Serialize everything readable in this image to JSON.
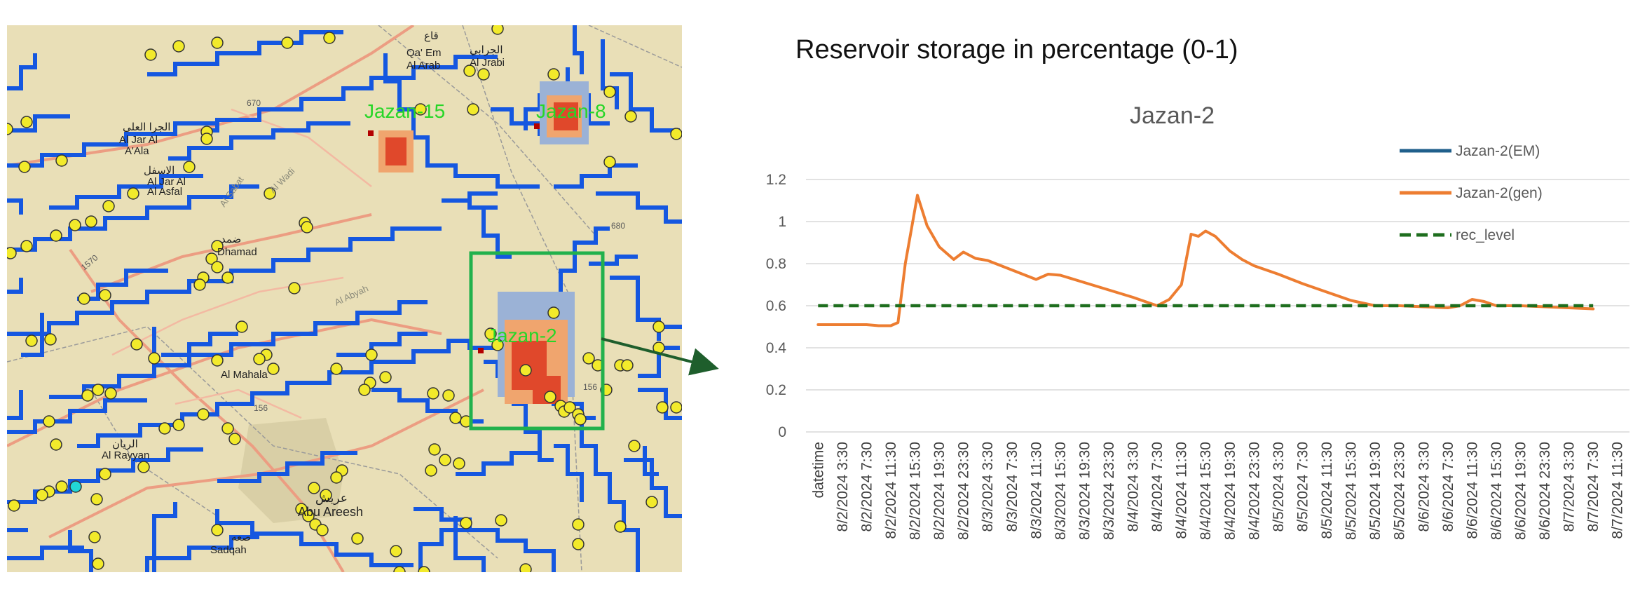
{
  "slide_title": "Reservoir storage in percentage (0-1)",
  "map": {
    "reservoir_labels": [
      "Jazan-15",
      "Jazan-8",
      "Jazan-2"
    ],
    "place_labels": [
      "الجرا العلى",
      "Al Jar Al",
      "A'Ala",
      "الاسفل",
      "Al Jar Al",
      "Al Asfal",
      "قاع",
      "Qa' Em",
      "Al Arab",
      "الجرابي",
      "Al Jrabi",
      "Dhamad",
      "ضمد",
      "Al Mahala",
      "الريان",
      "Al Rayyan",
      "عريش",
      "Abu Areesh",
      "صعه",
      "Sadqah",
      "Al Sabat",
      "Al Wadi",
      "Al Abyah"
    ],
    "road_labels": [
      "670",
      "680",
      "156",
      "156",
      "1570"
    ],
    "colors": {
      "background": "#e9dfb7",
      "river": "#1557e0",
      "gauge": "#f2ea2b",
      "highlight_box": "#22b14c",
      "arrow": "#1e5e2c"
    }
  },
  "chart_data": {
    "type": "line",
    "title": "Jazan-2",
    "xlabel": "",
    "ylabel": "",
    "ylim": [
      0,
      1.2
    ],
    "yticks": [
      "0",
      "0.2",
      "0.4",
      "0.6",
      "0.8",
      "1",
      "1.2"
    ],
    "xticks": [
      "datetime",
      "8/2/2024 3:30",
      "8/2/2024 7:30",
      "8/2/2024 11:30",
      "8/2/2024 15:30",
      "8/2/2024 19:30",
      "8/2/2024 23:30",
      "8/3/2024 3:30",
      "8/3/2024 7:30",
      "8/3/2024 11:30",
      "8/3/2024 15:30",
      "8/3/2024 19:30",
      "8/3/2024 23:30",
      "8/4/2024 3:30",
      "8/4/2024 7:30",
      "8/4/2024 11:30",
      "8/4/2024 15:30",
      "8/4/2024 19:30",
      "8/4/2024 23:30",
      "8/5/2024 3:30",
      "8/5/2024 7:30",
      "8/5/2024 11:30",
      "8/5/2024 15:30",
      "8/5/2024 19:30",
      "8/5/2024 23:30",
      "8/6/2024 3:30",
      "8/6/2024 7:30",
      "8/6/2024 11:30",
      "8/6/2024 15:30",
      "8/6/2024 19:30",
      "8/6/2024 23:30",
      "8/7/2024 3:30",
      "8/7/2024 7:30",
      "8/7/2024 11:30"
    ],
    "legend_position": "top-right",
    "grid": true,
    "series": [
      {
        "name": "Jazan-2(EM)",
        "color": "#1f5f8b",
        "dash": false,
        "points": []
      },
      {
        "name": "Jazan-2(gen)",
        "color": "#ed7d31",
        "dash": false,
        "points": [
          [
            0,
            0.51
          ],
          [
            1,
            0.51
          ],
          [
            2,
            0.51
          ],
          [
            2.5,
            0.505
          ],
          [
            3,
            0.505
          ],
          [
            3.3,
            0.52
          ],
          [
            3.6,
            0.8
          ],
          [
            4.1,
            1.125
          ],
          [
            4.5,
            0.98
          ],
          [
            5,
            0.88
          ],
          [
            5.6,
            0.82
          ],
          [
            6,
            0.855
          ],
          [
            6.5,
            0.825
          ],
          [
            7,
            0.815
          ],
          [
            8,
            0.77
          ],
          [
            9,
            0.725
          ],
          [
            9.5,
            0.75
          ],
          [
            10,
            0.745
          ],
          [
            11,
            0.71
          ],
          [
            12,
            0.675
          ],
          [
            13,
            0.64
          ],
          [
            14,
            0.6
          ],
          [
            14.5,
            0.63
          ],
          [
            15,
            0.7
          ],
          [
            15.4,
            0.94
          ],
          [
            15.7,
            0.93
          ],
          [
            16,
            0.955
          ],
          [
            16.4,
            0.93
          ],
          [
            17,
            0.86
          ],
          [
            17.5,
            0.82
          ],
          [
            18,
            0.79
          ],
          [
            19,
            0.75
          ],
          [
            20,
            0.705
          ],
          [
            21,
            0.665
          ],
          [
            22,
            0.625
          ],
          [
            23,
            0.6
          ],
          [
            24,
            0.6
          ],
          [
            25,
            0.595
          ],
          [
            26,
            0.59
          ],
          [
            26.5,
            0.6
          ],
          [
            27,
            0.63
          ],
          [
            27.5,
            0.62
          ],
          [
            28,
            0.6
          ],
          [
            29,
            0.6
          ],
          [
            30,
            0.595
          ],
          [
            31,
            0.59
          ],
          [
            32,
            0.585
          ]
        ]
      },
      {
        "name": "rec_level",
        "color": "#1e6e1e",
        "dash": true,
        "points": [
          [
            0,
            0.6
          ],
          [
            32,
            0.6
          ]
        ]
      }
    ]
  }
}
